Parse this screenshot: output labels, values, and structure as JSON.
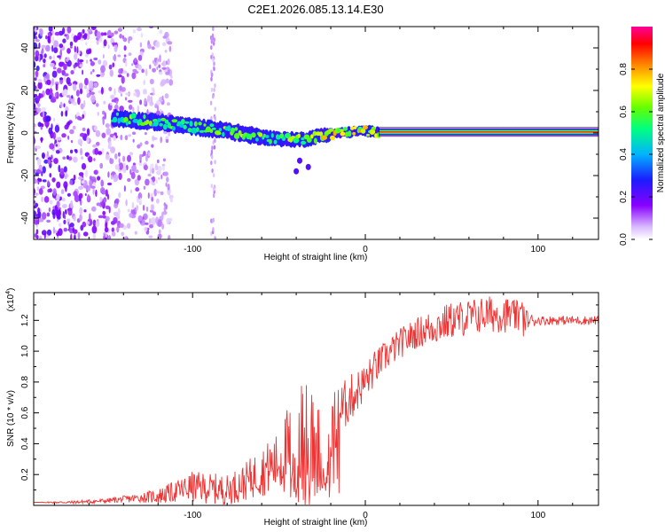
{
  "title": "C2E1.2026.085.13.14.E30",
  "colors": {
    "snr_line": "#ee3333",
    "frame": "#000000",
    "background": "#ffffff"
  },
  "chart_data": [
    {
      "type": "heatmap",
      "title": "C2E1.2026.085.13.14.E30",
      "xlabel": "Height of straight line (km)",
      "ylabel": "Frequency (Hz)",
      "xlim": [
        -192,
        135
      ],
      "ylim": [
        -50,
        50
      ],
      "xticks": [
        -100,
        0,
        100
      ],
      "yticks": [
        -40,
        -20,
        0,
        20,
        40
      ],
      "xtick_labels": [
        "-100",
        "0",
        "100"
      ],
      "ytick_labels": [
        "-40",
        "-20",
        "0",
        "20",
        "40"
      ],
      "colorbar": {
        "label": "Normalized spectral amplitude",
        "range": [
          0.0,
          1.0
        ],
        "ticks": [
          0.0,
          0.2,
          0.4,
          0.6,
          0.8
        ],
        "tick_labels": [
          "0.0",
          "0.2",
          "0.4",
          "0.6",
          "0.8"
        ]
      },
      "features": {
        "carrier_line": {
          "x_start": 8,
          "x_end": 135,
          "frequency": 0.5,
          "amplitude": 1.0
        },
        "signal_track": [
          {
            "x": -145,
            "f": 7
          },
          {
            "x": -120,
            "f": 5
          },
          {
            "x": -100,
            "f": 3
          },
          {
            "x": -80,
            "f": 1
          },
          {
            "x": -60,
            "f": -2
          },
          {
            "x": -45,
            "f": -3
          },
          {
            "x": -35,
            "f": -3
          },
          {
            "x": -25,
            "f": -1
          },
          {
            "x": -15,
            "f": 0
          },
          {
            "x": 0,
            "f": 1
          },
          {
            "x": 8,
            "f": 0.5
          }
        ],
        "noise_region": {
          "x_start": -192,
          "x_end": -120,
          "amplitude": 0.15
        }
      }
    },
    {
      "type": "line",
      "xlabel": "Height of straight line (km)",
      "ylabel": "SNR (10 * v/v)",
      "y_scale_label": "(x10",
      "y_scale_exp": "4",
      "xlim": [
        -192,
        135
      ],
      "ylim": [
        0,
        1.38
      ],
      "xticks": [
        -100,
        0,
        100
      ],
      "yticks": [
        0.2,
        0.4,
        0.6,
        0.8,
        1.0,
        1.2
      ],
      "xtick_labels": [
        "-100",
        "0",
        "100"
      ],
      "ytick_labels": [
        "0.2",
        "0.4",
        "0.6",
        "0.8",
        "1.0",
        "1.2"
      ],
      "series": [
        {
          "name": "SNR",
          "x": [
            -192,
            -170,
            -150,
            -130,
            -120,
            -110,
            -100,
            -90,
            -80,
            -70,
            -60,
            -50,
            -45,
            -40,
            -35,
            -30,
            -25,
            -22,
            -18,
            -15,
            -10,
            -5,
            0,
            5,
            10,
            20,
            30,
            40,
            50,
            60,
            70,
            80,
            90,
            95,
            100,
            110,
            120,
            135
          ],
          "y": [
            0.02,
            0.02,
            0.03,
            0.05,
            0.06,
            0.09,
            0.12,
            0.11,
            0.1,
            0.15,
            0.22,
            0.28,
            0.35,
            0.42,
            0.46,
            0.4,
            0.52,
            0.35,
            0.55,
            0.6,
            0.68,
            0.74,
            0.8,
            0.88,
            0.95,
            1.05,
            1.12,
            1.16,
            1.2,
            1.22,
            1.24,
            1.24,
            1.22,
            1.2,
            1.2,
            1.2,
            1.2,
            1.2
          ],
          "spread": [
            0.0,
            0.01,
            0.015,
            0.03,
            0.05,
            0.07,
            0.1,
            0.1,
            0.1,
            0.12,
            0.16,
            0.2,
            0.3,
            0.35,
            0.4,
            0.35,
            0.3,
            0.25,
            0.2,
            0.18,
            0.16,
            0.14,
            0.12,
            0.12,
            0.1,
            0.1,
            0.1,
            0.12,
            0.12,
            0.12,
            0.12,
            0.12,
            0.1,
            0.05,
            0.03,
            0.03,
            0.03,
            0.03
          ]
        }
      ]
    }
  ]
}
